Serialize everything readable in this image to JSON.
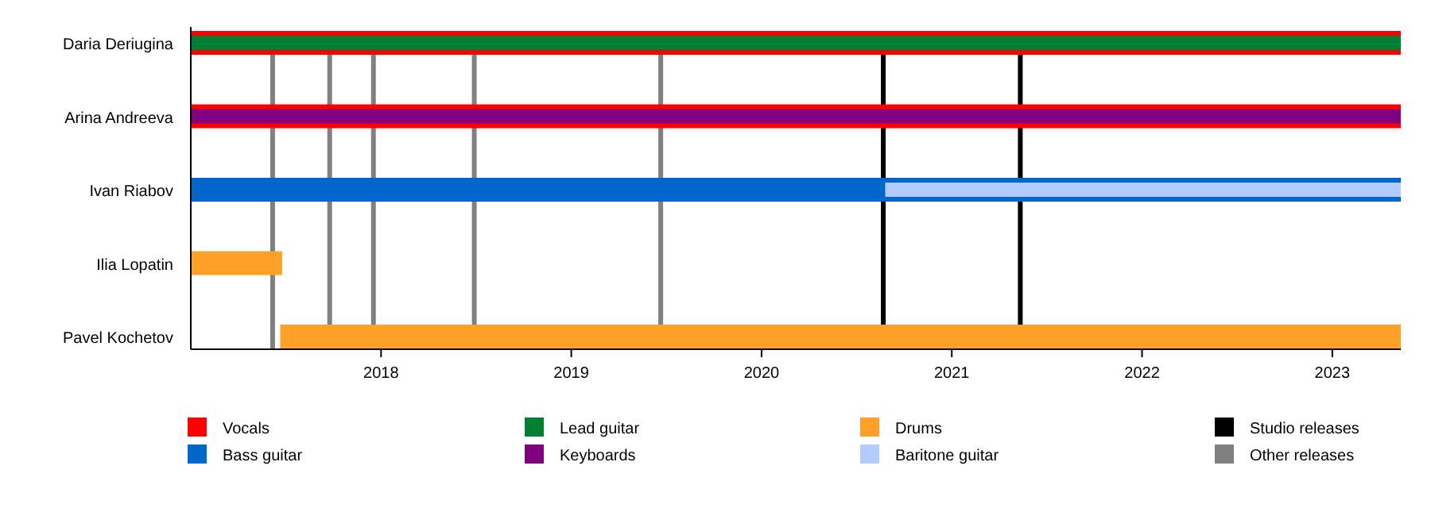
{
  "chart_data": {
    "type": "bar",
    "orientation": "horizontal",
    "categories": [
      "Daria Deriugina",
      "Arina Andreeva",
      "Ivan Riabov",
      "Ilia Lopatin",
      "Pavel Kochetov"
    ],
    "series": [
      {
        "name": "Vocals",
        "color": "#ff0000",
        "base": [
          2017.0,
          2017.0,
          null,
          null,
          null
        ],
        "values": [
          6.36,
          6.36,
          null,
          null,
          null
        ]
      },
      {
        "name": "Bass guitar",
        "color": "#0066cc",
        "base": [
          null,
          null,
          2017.0,
          null,
          null
        ],
        "values": [
          null,
          null,
          6.36,
          null,
          null
        ]
      },
      {
        "name": "Lead guitar",
        "color": "#008033",
        "base": [
          2017.0,
          null,
          null,
          null,
          null
        ],
        "values": [
          6.36,
          null,
          null,
          null,
          null
        ]
      },
      {
        "name": "Keyboards",
        "color": "#800080",
        "base": [
          null,
          2017.0,
          null,
          null,
          null
        ],
        "values": [
          null,
          6.36,
          null,
          null,
          null
        ]
      },
      {
        "name": "Drums",
        "color": "#ffa126",
        "base": [
          null,
          null,
          null,
          2017.0,
          2017.47
        ],
        "values": [
          null,
          null,
          null,
          0.48,
          5.89
        ]
      },
      {
        "name": "Baritone guitar",
        "color": "#b3ccff",
        "base": [
          null,
          null,
          2020.65,
          null,
          null
        ],
        "values": [
          null,
          null,
          2.71,
          null,
          null
        ]
      }
    ],
    "xlim": [
      2017.0,
      2023.36
    ],
    "xticks": [
      2018,
      2019,
      2020,
      2021,
      2022,
      2023
    ],
    "ref_lines": [
      {
        "axis": "x",
        "value": 2020.64,
        "label": "Studio releases",
        "color": "#000000"
      },
      {
        "axis": "x",
        "value": 2021.36,
        "label": null,
        "color": "#000000"
      },
      {
        "axis": "x",
        "value": 2017.43,
        "label": "Other releases",
        "color": "#808080"
      },
      {
        "axis": "x",
        "value": 2017.73,
        "label": null,
        "color": "#808080"
      },
      {
        "axis": "x",
        "value": 2017.96,
        "label": null,
        "color": "#808080"
      },
      {
        "axis": "x",
        "value": 2018.49,
        "label": null,
        "color": "#808080"
      },
      {
        "axis": "x",
        "value": 2019.47,
        "label": null,
        "color": "#808080"
      }
    ],
    "grid": false,
    "legend": "bottom"
  }
}
